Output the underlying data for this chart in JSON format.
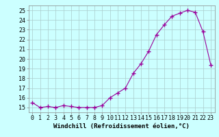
{
  "x": [
    0,
    1,
    2,
    3,
    4,
    5,
    6,
    7,
    8,
    9,
    10,
    11,
    12,
    13,
    14,
    15,
    16,
    17,
    18,
    19,
    20,
    21,
    22,
    23
  ],
  "y": [
    15.5,
    15.0,
    15.1,
    15.0,
    15.2,
    15.1,
    15.0,
    15.0,
    15.0,
    15.2,
    16.0,
    16.5,
    17.0,
    18.5,
    19.5,
    20.8,
    22.5,
    23.5,
    24.4,
    24.7,
    25.0,
    24.8,
    22.8,
    19.4
  ],
  "line_color": "#990099",
  "marker": "+",
  "markersize": 4,
  "markeredgewidth": 1.0,
  "linewidth": 0.8,
  "bg_color": "#ccffff",
  "grid_color": "#aacccc",
  "xlabel": "Windchill (Refroidissement éolien,°C)",
  "xlim": [
    -0.5,
    23.5
  ],
  "ylim": [
    14.5,
    25.5
  ],
  "xticks": [
    0,
    1,
    2,
    3,
    4,
    5,
    6,
    7,
    8,
    9,
    10,
    11,
    12,
    13,
    14,
    15,
    16,
    17,
    18,
    19,
    20,
    21,
    22,
    23
  ],
  "yticks": [
    15,
    16,
    17,
    18,
    19,
    20,
    21,
    22,
    23,
    24,
    25
  ],
  "tick_fontsize": 6,
  "xlabel_fontsize": 6.5,
  "spine_color": "#888888"
}
